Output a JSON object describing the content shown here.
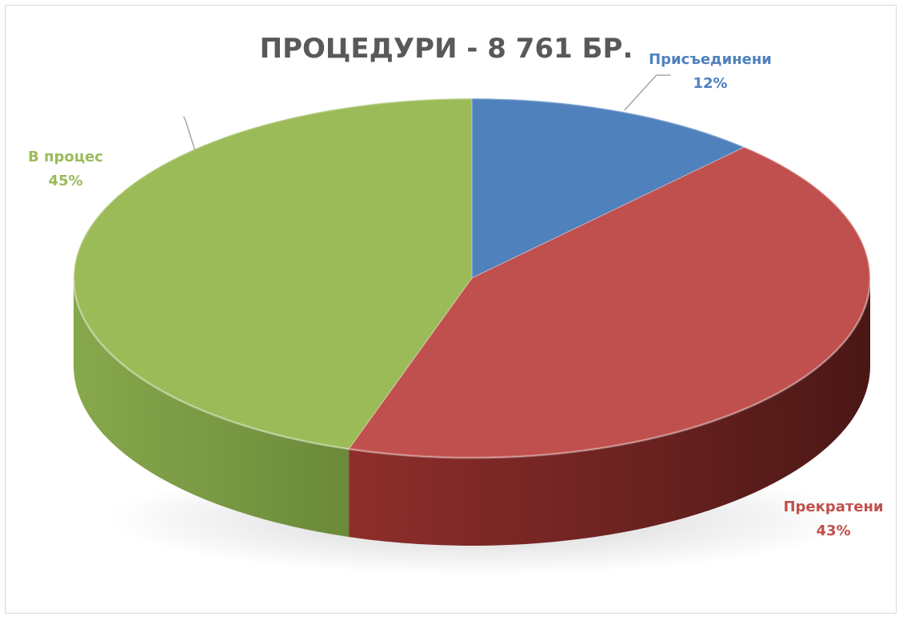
{
  "chart_data": {
    "type": "pie",
    "title": "ПРОЦЕДУРИ - 8 761 БР.",
    "categories": [
      "Присъединени",
      "Прекратени",
      "В процес"
    ],
    "values": [
      12,
      43,
      45
    ],
    "value_labels": [
      "12%",
      "43%",
      "45%"
    ],
    "colors": [
      "#4f81bd",
      "#c0504d",
      "#9bbb59"
    ],
    "style": "3d",
    "legend": "none"
  }
}
